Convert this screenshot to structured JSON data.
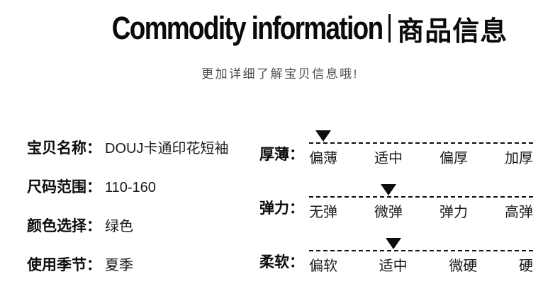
{
  "header": {
    "title_en": "Commodity information",
    "title_zh": "商品信息",
    "subtitle": "更加详细了解宝贝信息哦!"
  },
  "attributes": [
    {
      "label": "宝贝名称：",
      "value": "DOUJ卡通印花短袖"
    },
    {
      "label": "尺码范围：",
      "value": "110-160"
    },
    {
      "label": "颜色选择：",
      "value": "绿色"
    },
    {
      "label": "使用季节：",
      "value": "夏季"
    }
  ],
  "scales": [
    {
      "label": "厚薄：",
      "options": [
        "偏薄",
        "适中",
        "偏厚",
        "加厚"
      ],
      "selected_index": 0,
      "selected_option": "偏薄"
    },
    {
      "label": "弹力：",
      "options": [
        "无弹",
        "微弹",
        "弹力",
        "高弹"
      ],
      "selected_index": 1,
      "selected_option": "微弹"
    },
    {
      "label": "柔软：",
      "options": [
        "偏软",
        "适中",
        "微硬",
        "硬"
      ],
      "selected_index": 1,
      "selected_option": "适中"
    }
  ],
  "colors": {
    "text": "#0d0d0d",
    "subtitle_gray": "#4c4c4c",
    "marker": "#0d0d0d",
    "background": "#ffffff"
  }
}
